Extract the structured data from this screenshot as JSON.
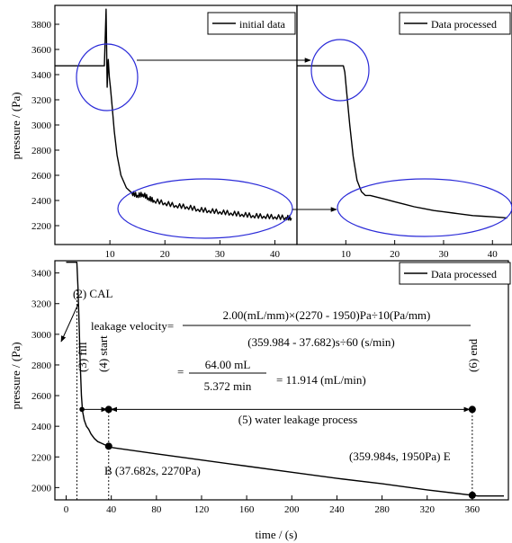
{
  "chart_data": [
    {
      "id": "top_left",
      "type": "line",
      "series": [
        {
          "name": "initial data",
          "x": [
            0,
            8,
            9,
            9.3,
            9.5,
            9.7,
            9.9,
            10.1,
            10.4,
            10.8,
            11.3,
            12,
            13,
            14,
            15,
            16,
            17,
            18,
            20,
            22,
            24,
            26,
            28,
            30,
            32,
            34,
            36,
            38,
            40,
            42,
            43
          ],
          "y": [
            3470,
            3470,
            3470,
            3920,
            3300,
            3520,
            3380,
            3300,
            3150,
            2950,
            2760,
            2600,
            2500,
            2460,
            2440,
            2450,
            2420,
            2400,
            2380,
            2360,
            2350,
            2330,
            2320,
            2310,
            2300,
            2290,
            2280,
            2275,
            2270,
            2265,
            2260
          ]
        }
      ],
      "xlim": [
        0,
        44
      ],
      "ylim": [
        2050,
        3950
      ],
      "xticks": [
        10,
        20,
        30,
        40
      ],
      "yticks": [
        2200,
        2400,
        2600,
        2800,
        3000,
        3200,
        3400,
        3600,
        3800
      ],
      "ylabel": "pressure / (Pa)",
      "legend": "top-right"
    },
    {
      "id": "top_right",
      "type": "line",
      "series": [
        {
          "name": "Data processed",
          "x": [
            0,
            9.5,
            9.8,
            10.2,
            10.8,
            11.5,
            12.3,
            13.2,
            14,
            15,
            16,
            18,
            20,
            22,
            24,
            26,
            28,
            30,
            32,
            34,
            36,
            38,
            40,
            42,
            43
          ],
          "y": [
            3470,
            3470,
            3420,
            3250,
            3000,
            2750,
            2560,
            2470,
            2440,
            2440,
            2430,
            2410,
            2390,
            2370,
            2350,
            2335,
            2320,
            2310,
            2300,
            2290,
            2280,
            2275,
            2270,
            2265,
            2260
          ]
        }
      ],
      "xlim": [
        0,
        44
      ],
      "ylim": [
        2050,
        3950
      ],
      "xticks": [
        10,
        20,
        30,
        40
      ],
      "legend": "top-right"
    },
    {
      "id": "bottom",
      "type": "line",
      "series": [
        {
          "name": "Data processed",
          "x": [
            0,
            9.5,
            10.5,
            11.5,
            12.5,
            13.5,
            14.5,
            16,
            18,
            20,
            22,
            25,
            28,
            31,
            34,
            37.682,
            40,
            80,
            120,
            160,
            200,
            240,
            280,
            320,
            359.984,
            365,
            388
          ],
          "y": [
            3470,
            3470,
            3300,
            3050,
            2800,
            2600,
            2500,
            2440,
            2400,
            2380,
            2350,
            2320,
            2300,
            2290,
            2280,
            2270,
            2262,
            2220,
            2180,
            2140,
            2100,
            2060,
            2025,
            1985,
            1950,
            1945,
            1945
          ]
        }
      ],
      "markers": [
        {
          "x": 14,
          "y": 2510
        },
        {
          "x": 37.682,
          "y": 2510
        },
        {
          "x": 37.682,
          "y": 2270
        },
        {
          "x": 359.984,
          "y": 2510
        },
        {
          "x": 359.984,
          "y": 1950
        }
      ],
      "xlim": [
        -10,
        392
      ],
      "ylim": [
        1920,
        3480
      ],
      "xticks": [
        0,
        40,
        80,
        120,
        160,
        200,
        240,
        280,
        320,
        360
      ],
      "yticks": [
        2000,
        2200,
        2400,
        2600,
        2800,
        3000,
        3200,
        3400
      ],
      "xlabel": "time / (s)",
      "ylabel": "pressure / (Pa)",
      "legend": "top-right",
      "annotations": {
        "cal": "(2) CAL",
        "fill": "(3) fill",
        "start": "(4) start",
        "end": "(6) end",
        "process": "(5) water leakage process",
        "point_b": "B (37.682s,  2270Pa)",
        "point_e": "(359.984s,  1950Pa) E",
        "formula_label": "leakage velocity=",
        "formula_numerator": "2.00(mL/mm)×(2270 - 1950)Pa÷10(Pa/mm)",
        "formula_denominator": "(359.984 - 37.682)s÷60 (s/min)",
        "eq_sign": "=",
        "result_numerator": "64.00 mL",
        "result_denominator": "5.372 min",
        "result_value": "= 11.914 (mL/min)"
      }
    }
  ]
}
